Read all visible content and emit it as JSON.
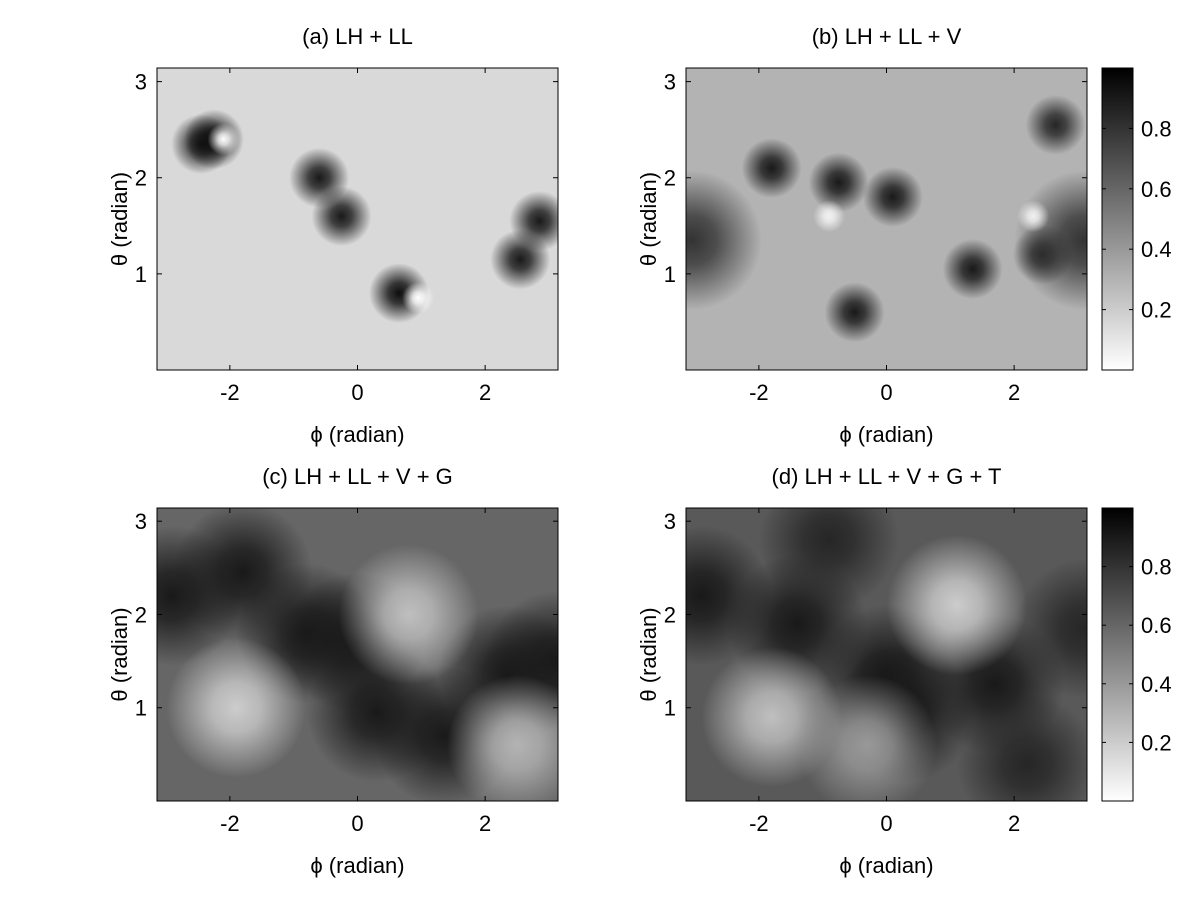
{
  "chart_data": [
    {
      "type": "heatmap",
      "title": "(a) LH + LL",
      "xlabel": "ϕ (radian)",
      "ylabel": "θ (radian)",
      "xlim": [
        -3.1416,
        3.1416
      ],
      "ylim": [
        0,
        3.1416
      ],
      "xticks": [
        -2,
        0,
        2
      ],
      "yticks": [
        1,
        2,
        3
      ],
      "zlim": [
        0,
        1
      ],
      "background": 0.15,
      "x": [
        -2.45,
        -2.25,
        -2.1,
        -0.6,
        -0.25,
        0.65,
        0.95,
        2.55,
        2.85
      ],
      "y": [
        2.35,
        2.4,
        2.4,
        2.0,
        1.6,
        0.8,
        0.75,
        1.15,
        1.55
      ],
      "z": [
        0.9,
        0.95,
        0.0,
        0.9,
        0.9,
        0.95,
        0.0,
        0.9,
        0.9
      ]
    },
    {
      "type": "heatmap",
      "title": "(b) LH + LL + V",
      "xlabel": "ϕ (radian)",
      "ylabel": "θ (radian)",
      "xlim": [
        -3.1416,
        3.1416
      ],
      "ylim": [
        0,
        3.1416
      ],
      "xticks": [
        -2,
        0,
        2
      ],
      "yticks": [
        1,
        2,
        3
      ],
      "zlim": [
        0,
        1
      ],
      "background": 0.3,
      "colorbar": true,
      "zticks": [
        0.2,
        0.4,
        0.6,
        0.8
      ],
      "x": [
        -1.8,
        -0.75,
        0.1,
        -0.5,
        1.35,
        2.45,
        2.65,
        -3.05,
        3.1,
        -0.9,
        2.3
      ],
      "y": [
        2.1,
        1.95,
        1.8,
        0.6,
        1.05,
        1.2,
        2.55,
        1.35,
        1.35,
        1.6,
        1.6
      ],
      "z": [
        0.9,
        0.9,
        0.9,
        0.9,
        0.9,
        0.85,
        0.85,
        0.8,
        0.8,
        0.05,
        0.05
      ]
    },
    {
      "type": "heatmap",
      "title": "(c) LH + LL + V + G",
      "xlabel": "ϕ (radian)",
      "ylabel": "θ (radian)",
      "xlim": [
        -3.1416,
        3.1416
      ],
      "ylim": [
        0,
        3.1416
      ],
      "xticks": [
        -2,
        0,
        2
      ],
      "yticks": [
        1,
        2,
        3
      ],
      "zlim": [
        0,
        1
      ],
      "background": 0.6,
      "x": [
        -2.9,
        -1.8,
        -0.8,
        -0.05,
        0.3,
        1.35,
        2.35,
        3.1,
        -1.9,
        0.8,
        2.5
      ],
      "y": [
        2.2,
        2.45,
        1.8,
        1.7,
        0.95,
        0.7,
        1.35,
        1.5,
        1.0,
        2.0,
        0.6
      ],
      "z": [
        0.9,
        0.9,
        0.9,
        0.9,
        0.9,
        0.9,
        0.9,
        0.9,
        0.2,
        0.25,
        0.3
      ]
    },
    {
      "type": "heatmap",
      "title": "(d) LH + LL + V + G + T",
      "xlabel": "ϕ (radian)",
      "ylabel": "θ (radian)",
      "xlim": [
        -3.1416,
        3.1416
      ],
      "ylim": [
        0,
        3.1416
      ],
      "xticks": [
        -2,
        0,
        2
      ],
      "yticks": [
        1,
        2,
        3
      ],
      "zlim": [
        0,
        1
      ],
      "background": 0.65,
      "colorbar": true,
      "zticks": [
        0.2,
        0.4,
        0.6,
        0.8
      ],
      "x": [
        -2.9,
        -1.4,
        -0.9,
        0.0,
        0.3,
        1.7,
        2.2,
        3.1,
        -1.8,
        1.1,
        -0.3
      ],
      "y": [
        2.2,
        1.9,
        2.8,
        1.35,
        0.95,
        1.25,
        0.4,
        1.85,
        0.9,
        2.1,
        0.6
      ],
      "z": [
        0.9,
        0.9,
        0.85,
        0.9,
        0.9,
        0.9,
        0.85,
        0.85,
        0.25,
        0.2,
        0.4
      ]
    }
  ]
}
